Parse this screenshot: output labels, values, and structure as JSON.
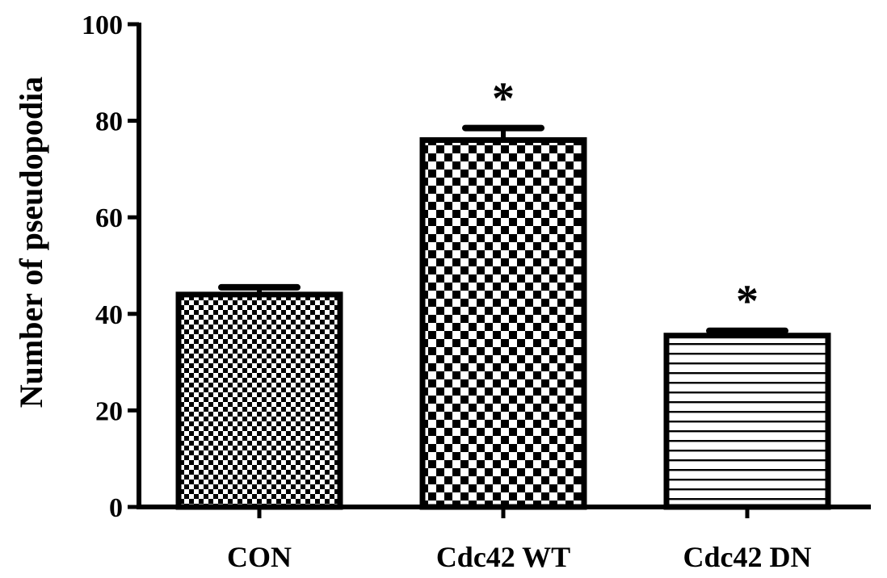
{
  "chart_data": {
    "type": "bar",
    "title": "",
    "xlabel": "",
    "ylabel": "Number of pseudopodia",
    "ylim": [
      0,
      100
    ],
    "yticks": [
      0,
      20,
      40,
      60,
      80,
      100
    ],
    "categories": [
      "CON",
      "Cdc42 WT",
      "Cdc42 DN"
    ],
    "values": [
      44,
      76,
      35.5
    ],
    "errors": [
      1.5,
      2.5,
      1
    ],
    "significance": [
      "",
      "*",
      "*"
    ],
    "patterns": [
      "fine-checker",
      "coarse-checker",
      "horizontal-stripes"
    ],
    "grid": false,
    "colors": {
      "bar_edge": "#000000",
      "fill": "#000000",
      "background": "#ffffff"
    }
  }
}
